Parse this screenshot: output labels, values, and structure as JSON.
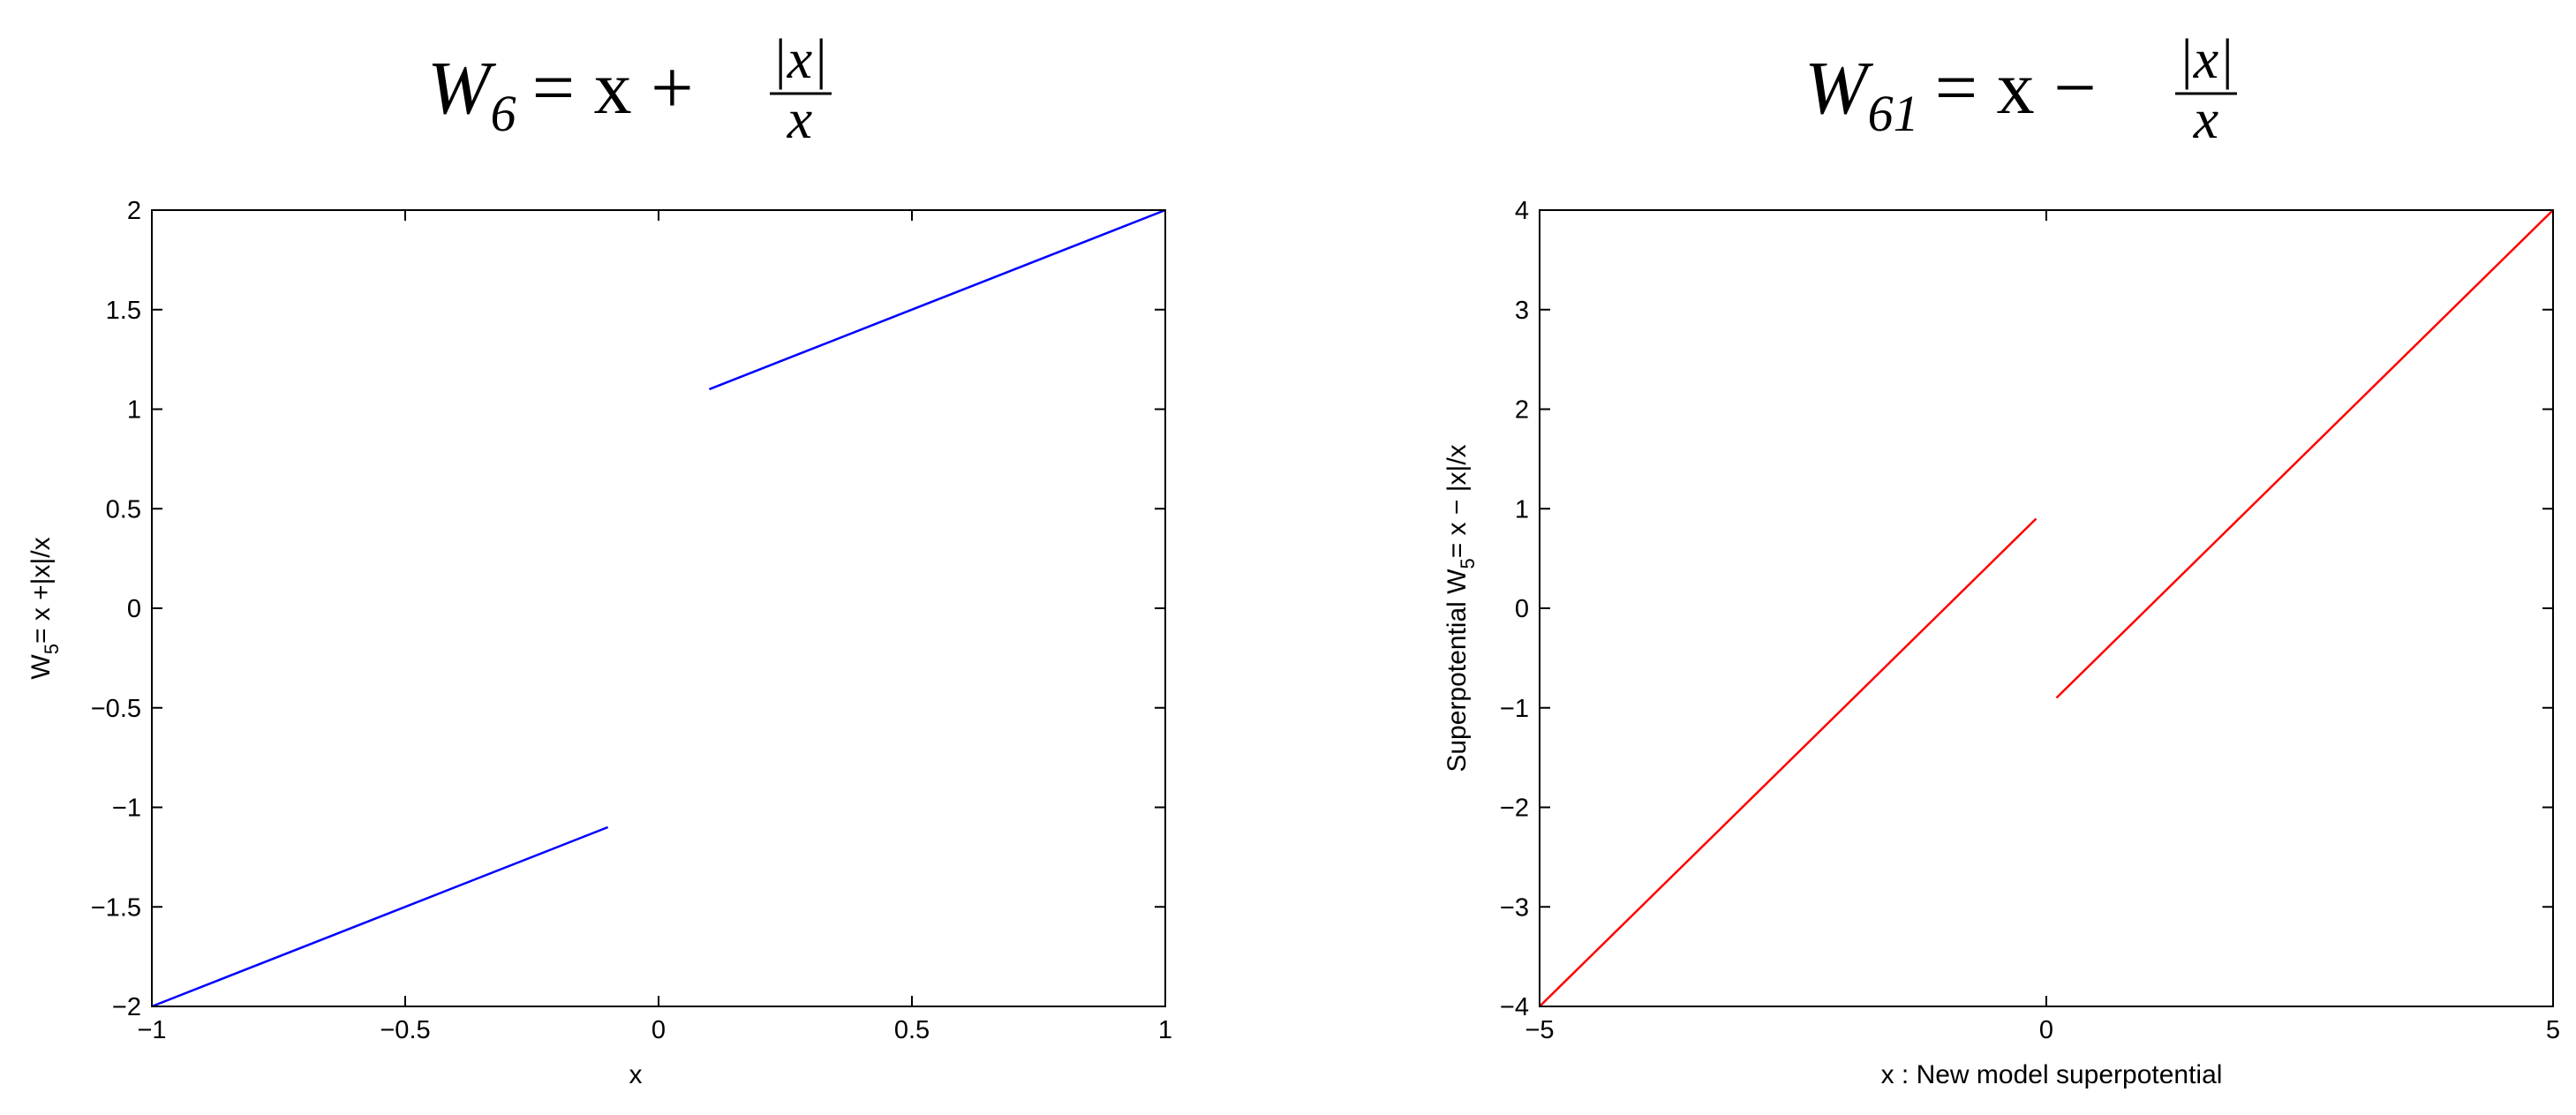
{
  "chart_data": [
    {
      "type": "line",
      "title": {
        "base": "W",
        "sub": "6",
        "rhs_left": "= x +",
        "numerator": "|x|",
        "denominator": "x"
      },
      "xlabel": "x",
      "ylabel": {
        "pre": "W",
        "sub": "5",
        "post": "= x +|x|/x"
      },
      "xlim": [
        -1,
        1
      ],
      "ylim": [
        -2,
        2
      ],
      "xticks": [
        -1,
        -0.5,
        0,
        0.5,
        1
      ],
      "xtick_labels": [
        "−1",
        "−0.5",
        "0",
        "0.5",
        "1"
      ],
      "yticks": [
        -2,
        -1.5,
        -1,
        -0.5,
        0,
        0.5,
        1,
        1.5,
        2
      ],
      "ytick_labels": [
        "−2",
        "−1.5",
        "−1",
        "−0.5",
        "0",
        "0.5",
        "1",
        "1.5",
        "2"
      ],
      "grid": false,
      "series": [
        {
          "color": "#0000ff",
          "segments": [
            {
              "x": [
                -1,
                -0.1
              ],
              "y": [
                -2,
                -1.1
              ]
            },
            {
              "x": [
                0.1,
                1
              ],
              "y": [
                1.1,
                2
              ]
            }
          ]
        }
      ]
    },
    {
      "type": "line",
      "title": {
        "base": "W",
        "sub": "61",
        "rhs_left": "= x −",
        "numerator": "|x|",
        "denominator": "x"
      },
      "xlabel": "x : New model superpotential",
      "ylabel": {
        "pre": "Superpotential W",
        "sub": "5",
        "post": "= x − |x|/x"
      },
      "xlim": [
        -5,
        5
      ],
      "ylim": [
        -4,
        4
      ],
      "xticks": [
        -5,
        0,
        5
      ],
      "xtick_labels": [
        "−5",
        "0",
        "5"
      ],
      "yticks": [
        -4,
        -3,
        -2,
        -1,
        0,
        1,
        2,
        3,
        4
      ],
      "ytick_labels": [
        "−4",
        "−3",
        "−2",
        "−1",
        "0",
        "1",
        "2",
        "3",
        "4"
      ],
      "grid": false,
      "series": [
        {
          "color": "#ff0000",
          "segments": [
            {
              "x": [
                -5,
                -0.1
              ],
              "y": [
                -4,
                0.9
              ]
            },
            {
              "x": [
                0.1,
                5
              ],
              "y": [
                -0.9,
                4
              ]
            }
          ]
        }
      ]
    }
  ]
}
